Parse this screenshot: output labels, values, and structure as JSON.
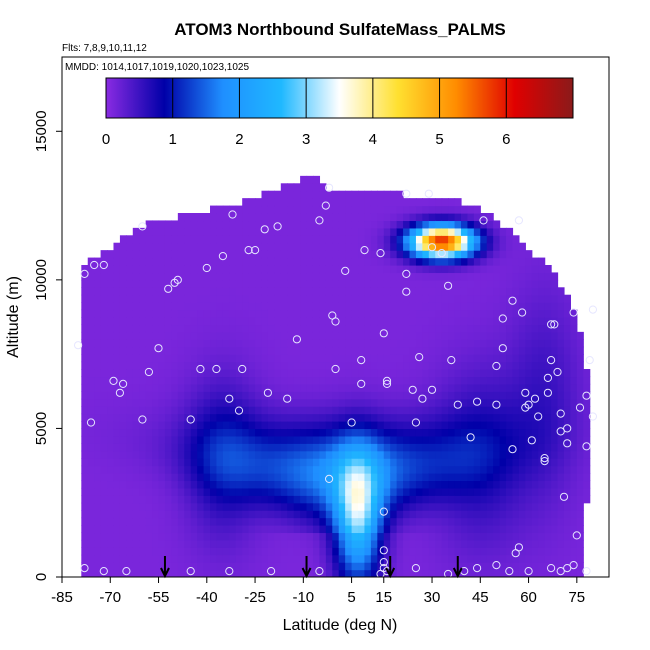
{
  "chart_data": {
    "type": "heatmap",
    "title": "ATOM3 Northbound SulfateMass_PALMS",
    "flights_text": "Flts: 7,8,9,10,11,12",
    "dates_text": "MMDD: 1014,1017,1019,1020,1023,1025",
    "xlabel": "Latitude (deg N)",
    "ylabel": "Altitude (m)",
    "xlim": [
      -85,
      85
    ],
    "ylim": [
      0,
      17500
    ],
    "x_ticks": [
      -85,
      -70,
      -55,
      -40,
      -25,
      -10,
      5,
      15,
      30,
      45,
      60,
      75
    ],
    "y_ticks": [
      0,
      5000,
      10000,
      15000
    ],
    "colorbar": {
      "range": [
        0,
        7
      ],
      "ticks": [
        0,
        1,
        2,
        3,
        4,
        5,
        6
      ],
      "colors": [
        "#8a2be2",
        "#0000a8",
        "#1f8fff",
        "#1fb8ff",
        "#ffffff",
        "#ffe030",
        "#ff8c00",
        "#e00000",
        "#8b1a1a"
      ]
    },
    "background_value": 0.1,
    "domain_outline": [
      [
        -78,
        0
      ],
      [
        -79,
        2500
      ],
      [
        -79,
        6000
      ],
      [
        -78,
        10500
      ],
      [
        -70,
        11000
      ],
      [
        -62,
        11800
      ],
      [
        -45,
        12200
      ],
      [
        -30,
        12600
      ],
      [
        -18,
        13100
      ],
      [
        -8,
        13500
      ],
      [
        -5,
        13500
      ],
      [
        -3,
        13100
      ],
      [
        12,
        13000
      ],
      [
        26,
        12800
      ],
      [
        42,
        12600
      ],
      [
        50,
        12100
      ],
      [
        57,
        11300
      ],
      [
        66,
        10500
      ],
      [
        72,
        9500
      ],
      [
        77,
        8000
      ],
      [
        79,
        6000
      ],
      [
        78,
        2500
      ],
      [
        76,
        0
      ]
    ],
    "features": [
      {
        "name": "tropical-core",
        "lat": 7,
        "alt": 2000,
        "sx": 5,
        "sy": 1500,
        "value": 2.6
      },
      {
        "name": "inverted-cone",
        "lat": 2,
        "alt": 3500,
        "sx": 22,
        "sy": 1100,
        "value": 1.7
      },
      {
        "name": "south-band",
        "lat": -35,
        "alt": 4000,
        "sx": 8,
        "sy": 1800,
        "value": 0.7
      },
      {
        "name": "north-band",
        "lat": 45,
        "alt": 4000,
        "sx": 10,
        "sy": 2000,
        "value": 0.6
      },
      {
        "name": "north-column",
        "lat": 65,
        "alt": 6000,
        "sx": 8,
        "sy": 2500,
        "value": 0.4
      },
      {
        "name": "upper-plume",
        "lat": 33,
        "alt": 11300,
        "sx": 7,
        "sy": 380,
        "value": 5.8
      }
    ],
    "arrows_lat": [
      -53,
      -9,
      17,
      38
    ],
    "sample_points": [
      [
        -80,
        7800
      ],
      [
        -78,
        10200
      ],
      [
        -75,
        10500
      ],
      [
        -72,
        10500
      ],
      [
        -69,
        6600
      ],
      [
        -67,
        6200
      ],
      [
        -66,
        6500
      ],
      [
        -76,
        5200
      ],
      [
        -78,
        300
      ],
      [
        -72,
        200
      ],
      [
        -60,
        5300
      ],
      [
        -58,
        6900
      ],
      [
        -55,
        7700
      ],
      [
        -60,
        11800
      ],
      [
        -52,
        9700
      ],
      [
        -50,
        9900
      ],
      [
        -49,
        10000
      ],
      [
        -45,
        5300
      ],
      [
        -42,
        7000
      ],
      [
        -40,
        10400
      ],
      [
        -37,
        7000
      ],
      [
        -35,
        10800
      ],
      [
        -33,
        6000
      ],
      [
        -32,
        12200
      ],
      [
        -30,
        5600
      ],
      [
        -29,
        7000
      ],
      [
        -27,
        11000
      ],
      [
        -25,
        11000
      ],
      [
        -22,
        11700
      ],
      [
        -21,
        6200
      ],
      [
        -18,
        11800
      ],
      [
        -15,
        6000
      ],
      [
        -12,
        8000
      ],
      [
        -5,
        12000
      ],
      [
        -3,
        12500
      ],
      [
        -2,
        13100
      ],
      [
        -1,
        8800
      ],
      [
        0,
        8600
      ],
      [
        0,
        7000
      ],
      [
        -2,
        3300
      ],
      [
        3,
        10300
      ],
      [
        5,
        5200
      ],
      [
        8,
        7300
      ],
      [
        8,
        6500
      ],
      [
        9,
        11000
      ],
      [
        14,
        10900
      ],
      [
        15,
        8200
      ],
      [
        16,
        6600
      ],
      [
        16,
        6500
      ],
      [
        15,
        2200
      ],
      [
        15,
        900
      ],
      [
        15,
        500
      ],
      [
        15,
        300
      ],
      [
        14,
        100
      ],
      [
        16,
        200
      ],
      [
        22,
        12900
      ],
      [
        22,
        9600
      ],
      [
        22,
        10200
      ],
      [
        24,
        6300
      ],
      [
        25,
        5200
      ],
      [
        26,
        7400
      ],
      [
        27,
        6000
      ],
      [
        29,
        12900
      ],
      [
        30,
        6300
      ],
      [
        30,
        11100
      ],
      [
        33,
        10900
      ],
      [
        35,
        9800
      ],
      [
        36,
        7300
      ],
      [
        38,
        5800
      ],
      [
        42,
        4700
      ],
      [
        44,
        5900
      ],
      [
        46,
        12000
      ],
      [
        50,
        7100
      ],
      [
        50,
        5800
      ],
      [
        52,
        8700
      ],
      [
        52,
        7700
      ],
      [
        55,
        4300
      ],
      [
        55,
        9300
      ],
      [
        57,
        12000
      ],
      [
        58,
        8900
      ],
      [
        59,
        6200
      ],
      [
        59,
        5700
      ],
      [
        60,
        5800
      ],
      [
        61,
        4600
      ],
      [
        62,
        6000
      ],
      [
        63,
        5400
      ],
      [
        65,
        4000
      ],
      [
        65,
        3900
      ],
      [
        66,
        6200
      ],
      [
        66,
        6700
      ],
      [
        67,
        7300
      ],
      [
        67,
        8500
      ],
      [
        68,
        8500
      ],
      [
        69,
        6900
      ],
      [
        70,
        4900
      ],
      [
        70,
        5500
      ],
      [
        71,
        2700
      ],
      [
        72,
        4500
      ],
      [
        72,
        5000
      ],
      [
        74,
        8900
      ],
      [
        76,
        5700
      ],
      [
        78,
        6100
      ],
      [
        78,
        4400
      ],
      [
        79,
        7300
      ],
      [
        80,
        5400
      ],
      [
        80,
        9000
      ],
      [
        75,
        1400
      ],
      [
        57,
        1000
      ],
      [
        56,
        800
      ],
      [
        54,
        200
      ],
      [
        60,
        200
      ],
      [
        67,
        300
      ],
      [
        70,
        200
      ],
      [
        72,
        300
      ],
      [
        74,
        400
      ],
      [
        78,
        200
      ],
      [
        50,
        400
      ],
      [
        44,
        300
      ],
      [
        40,
        200
      ],
      [
        35,
        100
      ],
      [
        25,
        300
      ],
      [
        -5,
        200
      ],
      [
        -20,
        200
      ],
      [
        -33,
        200
      ],
      [
        -45,
        200
      ],
      [
        -65,
        200
      ]
    ]
  }
}
